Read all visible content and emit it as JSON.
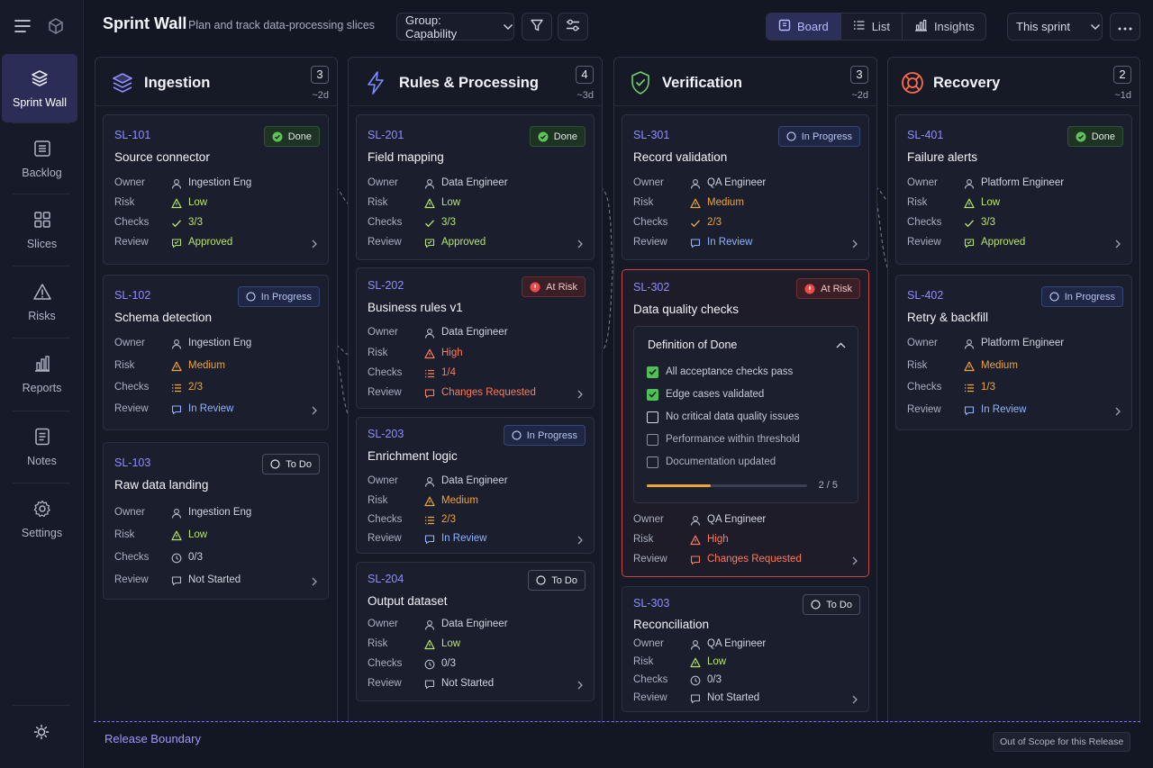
{
  "app": {
    "title": "Sprint Wall",
    "subtitle": "Plan and track data-processing slices"
  },
  "toolbar": {
    "group_label": "Group: Capability",
    "views": [
      "Board",
      "List",
      "Insights"
    ],
    "active_view": "Board",
    "range_label": "This sprint"
  },
  "sidebar": {
    "items": [
      {
        "label": "Sprint Wall",
        "icon": "layers-icon",
        "active": true
      },
      {
        "label": "Backlog",
        "icon": "backlog-icon"
      },
      {
        "label": "Slices",
        "icon": "grid-icon"
      },
      {
        "label": "Risks",
        "icon": "warning-icon"
      },
      {
        "label": "Reports",
        "icon": "bar-chart-icon"
      },
      {
        "label": "Notes",
        "icon": "notes-icon"
      },
      {
        "label": "Settings",
        "icon": "gear-icon"
      }
    ]
  },
  "labels": {
    "owner": "Owner",
    "risk": "Risk",
    "checks": "Checks",
    "review": "Review"
  },
  "columns": [
    {
      "title": "Ingestion",
      "count": "3",
      "estimate": "~2d",
      "cards": [
        {
          "id": "SL-101",
          "title": "Source connector",
          "status": "Done",
          "owner": "Ingestion Eng",
          "risk": "Low",
          "checks": "3/3",
          "review": "Approved"
        },
        {
          "id": "SL-102",
          "title": "Schema detection",
          "status": "In Progress",
          "owner": "Ingestion Eng",
          "risk": "Medium",
          "checks": "2/3",
          "review": "In Review"
        },
        {
          "id": "SL-103",
          "title": "Raw data landing",
          "status": "To Do",
          "owner": "Ingestion Eng",
          "risk": "Low",
          "checks": "0/3",
          "review": "Not Started"
        }
      ]
    },
    {
      "title": "Rules & Processing",
      "count": "4",
      "estimate": "~3d",
      "cards": [
        {
          "id": "SL-201",
          "title": "Field mapping",
          "status": "Done",
          "owner": "Data Engineer",
          "risk": "Low",
          "checks": "3/3",
          "review": "Approved"
        },
        {
          "id": "SL-202",
          "title": "Business rules v1",
          "status": "At Risk",
          "owner": "Data Engineer",
          "risk": "High",
          "checks": "1/4",
          "review": "Changes Requested"
        },
        {
          "id": "SL-203",
          "title": "Enrichment logic",
          "status": "In Progress",
          "owner": "Data Engineer",
          "risk": "Medium",
          "checks": "2/3",
          "review": "In Review"
        },
        {
          "id": "SL-204",
          "title": "Output dataset",
          "status": "To Do",
          "owner": "Data Engineer",
          "risk": "Low",
          "checks": "0/3",
          "review": "Not Started"
        }
      ]
    },
    {
      "title": "Verification",
      "count": "3",
      "estimate": "~2d",
      "cards": [
        {
          "id": "SL-301",
          "title": "Record validation",
          "status": "In Progress",
          "owner": "QA Engineer",
          "risk": "Medium",
          "checks": "2/3",
          "review": "In Review"
        },
        {
          "id": "SL-302",
          "title": "Data quality checks",
          "status": "At Risk",
          "owner": "QA Engineer",
          "risk": "High",
          "review": "Changes Requested",
          "dod": {
            "title": "Definition of Done",
            "items": [
              {
                "label": "All acceptance checks pass",
                "checked": true
              },
              {
                "label": "Edge cases validated",
                "checked": true
              },
              {
                "label": "No critical data quality issues",
                "checked": false
              },
              {
                "label": "Performance within threshold",
                "checked": false
              },
              {
                "label": "Documentation updated",
                "checked": false
              }
            ],
            "progress_text": "2 / 5",
            "progress_fraction": 0.4
          }
        },
        {
          "id": "SL-303",
          "title": "Reconciliation",
          "status": "To Do",
          "owner": "QA Engineer",
          "risk": "Low",
          "checks": "0/3",
          "review": "Not Started"
        }
      ]
    },
    {
      "title": "Recovery",
      "count": "2",
      "estimate": "~1d",
      "cards": [
        {
          "id": "SL-401",
          "title": "Failure alerts",
          "status": "Done",
          "owner": "Platform Engineer",
          "risk": "Low",
          "checks": "3/3",
          "review": "Approved"
        },
        {
          "id": "SL-402",
          "title": "Retry & backfill",
          "status": "In Progress",
          "owner": "Platform Engineer",
          "risk": "Medium",
          "checks": "1/3",
          "review": "In Review"
        }
      ]
    }
  ],
  "footer": {
    "release_label": "Release Boundary",
    "scope_label": "Out of Scope for this Release"
  },
  "colors": {
    "accent": "#8f8cff",
    "done": "#4fbf59",
    "low": "#b8e36a",
    "medium": "#f0a43a",
    "high": "#ff7a5c",
    "review": "#8fb2ff"
  }
}
